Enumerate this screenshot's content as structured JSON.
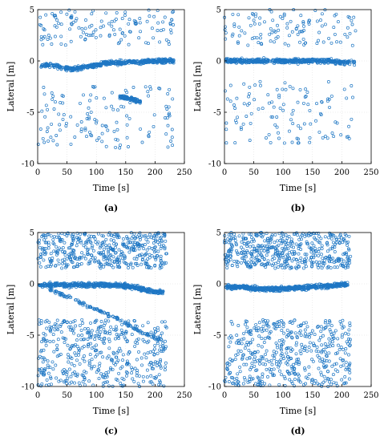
{
  "chart_data": [
    {
      "type": "scatter",
      "panel": "a",
      "caption": "(a)",
      "xlabel": "Time [s]",
      "ylabel": "Lateral [m]",
      "xlim": [
        0,
        250
      ],
      "ylim": [
        -10,
        5
      ],
      "xticks": [
        0,
        50,
        100,
        150,
        200,
        250
      ],
      "yticks": [
        5,
        0,
        -5,
        -10
      ],
      "x_extent": [
        0,
        235
      ],
      "grid": true,
      "series": [
        {
          "x": [
            5,
            20,
            40,
            60,
            80,
            100,
            120,
            140,
            160,
            180,
            200,
            220,
            232
          ],
          "y": [
            -0.4,
            -0.4,
            -0.6,
            -0.8,
            -0.6,
            -0.4,
            -0.2,
            -0.2,
            -0.1,
            -0.1,
            0,
            0,
            0
          ]
        },
        {
          "x": [
            140,
            150,
            160,
            170,
            175
          ],
          "y": [
            -3.5,
            -3.6,
            -3.7,
            -3.9,
            -4.0
          ]
        }
      ],
      "scatter_bands": [
        [
          -8.5,
          -2.5
        ],
        [
          1.5,
          5
        ]
      ]
    },
    {
      "type": "scatter",
      "panel": "b",
      "caption": "(b)",
      "xlabel": "Time [s]",
      "ylabel": "Lateral [m]",
      "xlim": [
        0,
        250
      ],
      "ylim": [
        -10,
        5
      ],
      "xticks": [
        0,
        50,
        100,
        150,
        200,
        250
      ],
      "yticks": [
        5,
        0,
        -5,
        -10
      ],
      "x_extent": [
        0,
        225
      ],
      "grid": true,
      "series": [
        {
          "x": [
            2,
            30,
            60,
            90,
            120,
            150,
            180,
            210,
            222
          ],
          "y": [
            0,
            0,
            0,
            0,
            0,
            0,
            0,
            -0.2,
            -0.2
          ]
        }
      ],
      "scatter_bands": [
        [
          -8,
          -2
        ],
        [
          1.5,
          5
        ]
      ]
    },
    {
      "type": "scatter",
      "panel": "c",
      "caption": "(c)",
      "xlabel": "Time [s]",
      "ylabel": "Lateral [m]",
      "xlim": [
        0,
        250
      ],
      "ylim": [
        -10,
        5
      ],
      "xticks": [
        0,
        50,
        100,
        150,
        200,
        250
      ],
      "yticks": [
        5,
        0,
        -5,
        -10
      ],
      "x_extent": [
        0,
        220
      ],
      "grid": true,
      "series": [
        {
          "x": [
            2,
            30,
            60,
            90,
            120,
            150,
            180,
            200,
            215
          ],
          "y": [
            -0.1,
            -0.1,
            -0.1,
            -0.1,
            -0.1,
            -0.2,
            -0.5,
            -0.8,
            -0.8
          ]
        },
        {
          "x": [
            20,
            40,
            60,
            80,
            100,
            120,
            140,
            160,
            180,
            200,
            215
          ],
          "y": [
            -0.5,
            -1.0,
            -1.5,
            -2.0,
            -2.5,
            -3.0,
            -3.5,
            -4.2,
            -4.8,
            -5.2,
            -5.6
          ]
        }
      ],
      "scatter_bands": [
        [
          -10,
          -3.5
        ],
        [
          1.5,
          5
        ]
      ]
    },
    {
      "type": "scatter",
      "panel": "d",
      "caption": "(d)",
      "xlabel": "Time [s]",
      "ylabel": "Lateral [m]",
      "xlim": [
        0,
        250
      ],
      "ylim": [
        -10,
        5
      ],
      "xticks": [
        0,
        50,
        100,
        150,
        200,
        250
      ],
      "yticks": [
        5,
        0,
        -5,
        -10
      ],
      "x_extent": [
        0,
        215
      ],
      "grid": true,
      "series": [
        {
          "x": [
            2,
            30,
            60,
            90,
            120,
            150,
            180,
            210
          ],
          "y": [
            -0.3,
            -0.3,
            -0.5,
            -0.5,
            -0.4,
            -0.3,
            -0.2,
            0
          ]
        }
      ],
      "scatter_bands": [
        [
          -10,
          -3.5
        ],
        [
          1.5,
          5
        ]
      ]
    }
  ]
}
